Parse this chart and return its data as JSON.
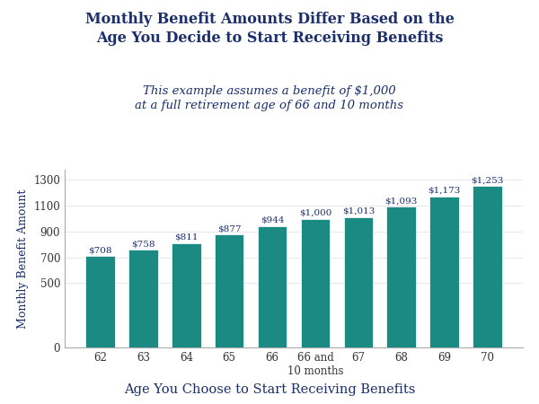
{
  "title_line1": "Monthly Benefit Amounts Differ Based on the",
  "title_line2": "Age You Decide to Start Receiving Benefits",
  "subtitle_line1": "This example assumes a benefit of $1,000",
  "subtitle_line2": "at a full retirement age of 66 and 10 months",
  "xlabel": "Age You Choose to Start Receiving Benefits",
  "ylabel": "Monthly Benefit Amount",
  "categories": [
    "62",
    "63",
    "64",
    "65",
    "66",
    "66 and\n10 months",
    "67",
    "68",
    "69",
    "70"
  ],
  "values": [
    708,
    758,
    811,
    877,
    944,
    1000,
    1013,
    1093,
    1173,
    1253
  ],
  "bar_labels": [
    "$708",
    "$758",
    "$811",
    "$877",
    "$944",
    "$1,000",
    "$1,013",
    "$1,093",
    "$1,173",
    "$1,253"
  ],
  "bar_color": "#1a8a82",
  "bar_edge_color": "#ffffff",
  "yticks": [
    0,
    500,
    700,
    900,
    1100,
    1300
  ],
  "ylim": [
    0,
    1380
  ],
  "title_color": "#1a2f6b",
  "subtitle_color": "#1a2f6b",
  "axis_label_color": "#1a2f6b",
  "tick_color": "#333333",
  "bar_label_color": "#1a2f6b",
  "background_color": "#ffffff",
  "title_fontsize": 11.5,
  "subtitle_fontsize": 9.5,
  "xlabel_fontsize": 10.5,
  "ylabel_fontsize": 9,
  "bar_label_fontsize": 7.5,
  "tick_fontsize": 8.5
}
